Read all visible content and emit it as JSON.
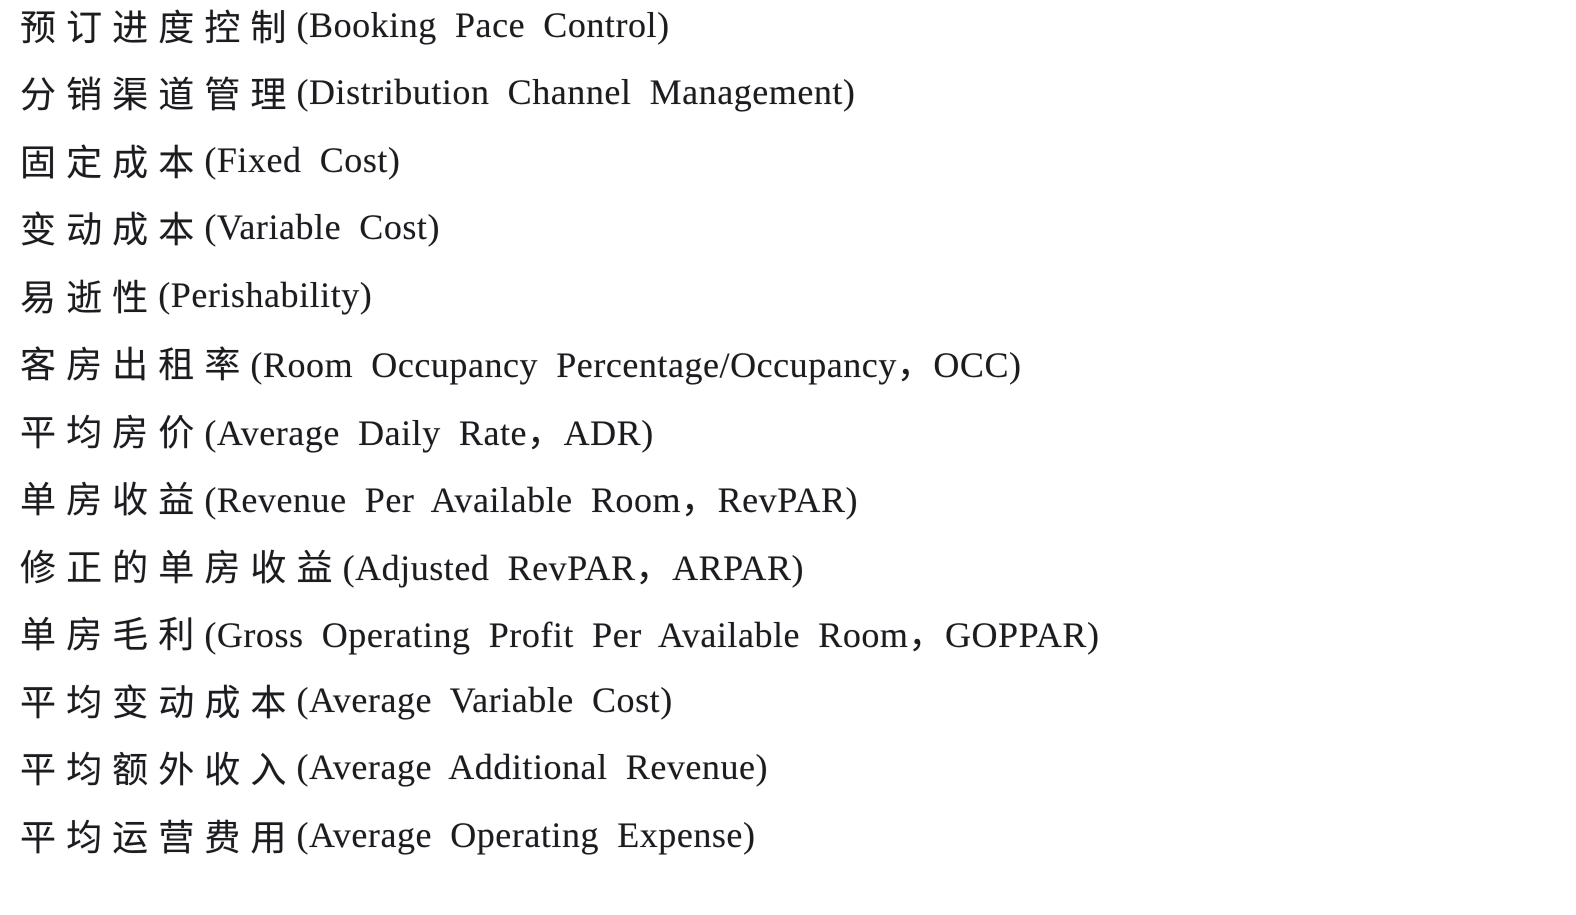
{
  "page": {
    "background_color": "#ffffff",
    "text_color": "#1c1c1f"
  },
  "glossary": {
    "terms": [
      {
        "zh": "预订进度控制",
        "en": "(Booking Pace Control)"
      },
      {
        "zh": "分销渠道管理",
        "en": "(Distribution Channel Management)"
      },
      {
        "zh": "固定成本",
        "en": "(Fixed Cost)"
      },
      {
        "zh": "变动成本",
        "en": "(Variable Cost)"
      },
      {
        "zh": "易逝性",
        "en": "(Perishability)"
      },
      {
        "zh": "客房出租率",
        "en": "(Room Occupancy Percentage/Occupancy，OCC)"
      },
      {
        "zh": "平均房价",
        "en": "(Average Daily Rate，ADR)"
      },
      {
        "zh": "单房收益",
        "en": "(Revenue Per Available Room，RevPAR)"
      },
      {
        "zh": "修正的单房收益",
        "en": "(Adjusted RevPAR，ARPAR)"
      },
      {
        "zh": "单房毛利",
        "en": "(Gross Operating Profit Per Available Room，GOPPAR)"
      },
      {
        "zh": "平均变动成本",
        "en": "(Average Variable Cost)"
      },
      {
        "zh": "平均额外收入",
        "en": "(Average Additional Revenue)"
      },
      {
        "zh": "平均运营费用",
        "en": "(Average Operating Expense)"
      }
    ]
  }
}
